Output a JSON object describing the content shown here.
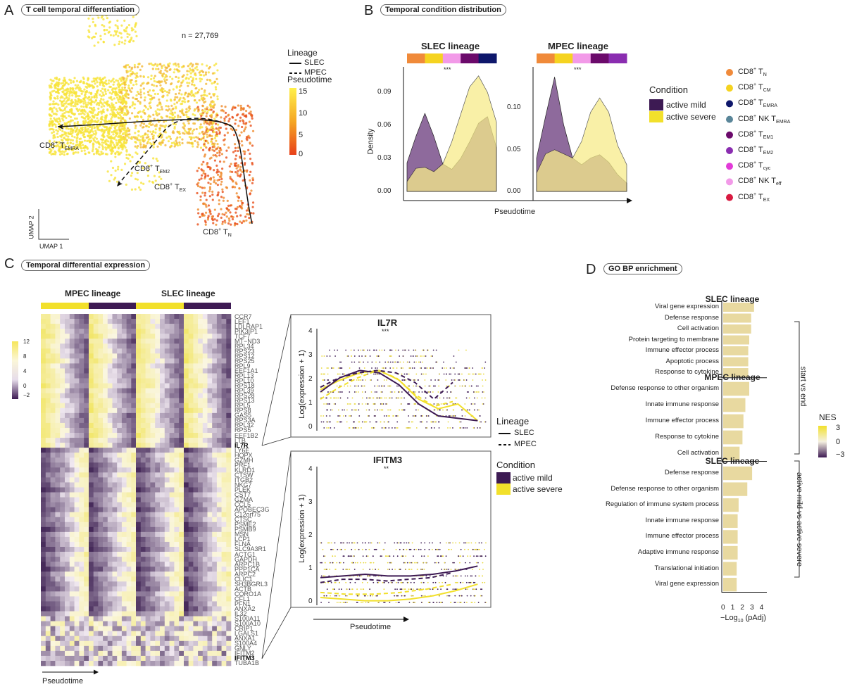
{
  "panels": {
    "a": {
      "letter": "A",
      "title": "T cell temporal differentiation",
      "n_label": "n = 27,769",
      "lineage_legend": {
        "title": "Lineage",
        "items": [
          "SLEC",
          "MPEC"
        ]
      },
      "pseudotime_legend": {
        "title": "Pseudotime",
        "ticks": [
          "15",
          "10",
          "5",
          "0"
        ],
        "colors": [
          "#fff04a",
          "#f5a623",
          "#e8401a"
        ]
      },
      "annotations": {
        "emra": "CD8",
        "emra_sub": "EMRA",
        "em2": "CD8",
        "em2_sub": "EM2",
        "ex": "CD8",
        "ex_sub": "EX",
        "tn": "CD8",
        "tn_sub": "N",
        "sup": "+",
        "t": "T"
      },
      "axes": {
        "x": "UMAP 1",
        "y": "UMAP 2"
      }
    },
    "b": {
      "letter": "B",
      "title": "Temporal condition distribution",
      "xlabel": "Pseudotime",
      "ylabel": "Density",
      "sig": "***",
      "condition_legend": {
        "title": "Condition",
        "items": [
          {
            "label": "active mild",
            "color": "#3d1a53"
          },
          {
            "label": "active severe",
            "color": "#f2e02b"
          }
        ]
      },
      "celltype_legend": [
        {
          "base": "CD8",
          "sup": "+",
          "main": " T",
          "sub": "N",
          "color": "#f08a3a"
        },
        {
          "base": "CD8",
          "sup": "+",
          "main": " T",
          "sub": "CM",
          "color": "#f5d320"
        },
        {
          "base": "CD8",
          "sup": "+",
          "main": " T",
          "sub": "EMRA",
          "color": "#0e176b"
        },
        {
          "base": "CD8",
          "sup": "+",
          "main": " NK T",
          "sub": "EMRA",
          "color": "#5a8699"
        },
        {
          "base": "CD8",
          "sup": "+",
          "main": " T",
          "sub": "EM1",
          "color": "#6b0a6b"
        },
        {
          "base": "CD8",
          "sup": "+",
          "main": " T",
          "sub": "EM2",
          "color": "#8a2db0"
        },
        {
          "base": "CD8",
          "sup": "+",
          "main": " T",
          "sub": "cyc",
          "color": "#e23ad8"
        },
        {
          "base": "CD8",
          "sup": "+",
          "main": " NK T",
          "sub": "eff",
          "color": "#f29ae8"
        },
        {
          "base": "CD8",
          "sup": "+",
          "main": " T",
          "sub": "EX",
          "color": "#d81a40"
        }
      ]
    },
    "c": {
      "letter": "C",
      "title": "Temporal differential expression",
      "lineages": [
        "MPEC lineage",
        "SLEC lineage"
      ],
      "xlabel": "Pseudotime",
      "colorbar_ticks": [
        "12",
        "8",
        "4",
        "0",
        "−2"
      ],
      "genes": [
        "CCR7",
        "LEF1",
        "LDLRAP1",
        "PIK3IP1",
        "TCF7",
        "MT−ND3",
        "RPL34",
        "RPS23",
        "RPS12",
        "RPS25",
        "RPL9",
        "EEF1A1",
        "RPL13",
        "RPL10",
        "RPS18",
        "RPL39",
        "RPS28",
        "RPS13",
        "RPL5",
        "RPS8",
        "GAS5",
        "RPS3A",
        "RPL32",
        "RPS5",
        "EEF1B2",
        "LTB",
        "IL7R",
        "LY6E",
        "HOPX",
        "GZMH",
        "PRF1",
        "KLRD1",
        "CTSW",
        "ITGB2",
        "NKG7",
        "PLEK",
        "CST7",
        "GZMA",
        "CCL5",
        "APOBEC3G",
        "C12orf75",
        "CTSC",
        "PSME2",
        "PSMB9",
        "MSN",
        "LCP1",
        "FLNA",
        "SLC9A3R1",
        "ACTG1",
        "GAPDH",
        "ARPC1B",
        "PPP1CA",
        "ARPC2",
        "CLIC1",
        "SH3BGRL3",
        "ACTB",
        "CORO1A",
        "CFL1",
        "PFN1",
        "ANXA2",
        "IL32",
        "S100A11",
        "S100A10",
        "CRIP1",
        "LGALS1",
        "ANXA1",
        "S100A4",
        "GNLY",
        "IFITM2",
        "IFITM3",
        "TUBA1B"
      ],
      "highlighted": [
        "IL7R",
        "IFITM3"
      ],
      "insets": [
        {
          "gene": "IL7R",
          "sig": "***",
          "ylabel": "Log(expression + 1)",
          "yticks": [
            0,
            1,
            2,
            3,
            4
          ],
          "curves": {
            "slec_mild": [
              1.5,
              2.1,
              2.4,
              2.3,
              1.8,
              1.0,
              0.5,
              0.4,
              0.3
            ],
            "slec_severe": [
              1.6,
              2.0,
              2.3,
              2.4,
              2.0,
              1.2,
              0.8,
              1.0,
              0.3
            ],
            "mpec_mild": [
              1.7,
              2.1,
              2.3,
              2.4,
              2.3,
              1.9,
              1.2,
              1.9
            ],
            "mpec_severe": [
              1.2,
              1.7,
              2.1,
              2.4,
              2.1,
              1.4,
              0.9,
              1.1
            ]
          }
        },
        {
          "gene": "IFITM3",
          "sig": "**",
          "ylabel": "Log(expression + 1)",
          "yticks": [
            0,
            1,
            2,
            3,
            4
          ],
          "curves": {
            "slec_mild": [
              0.75,
              0.8,
              0.85,
              0.8,
              0.8,
              0.85,
              0.95,
              1.1
            ],
            "slec_severe": [
              0.15,
              0.1,
              0.05,
              0.05,
              0.1,
              0.2,
              0.35,
              0.55
            ],
            "mpec_mild": [
              0.6,
              0.7,
              0.7,
              0.65,
              0.7,
              0.75,
              0.9
            ],
            "mpec_severe": [
              0.3,
              0.25,
              0.25,
              0.3,
              0.4,
              0.55
            ]
          }
        }
      ],
      "lineage_legend": {
        "title": "Lineage",
        "items": [
          "SLEC",
          "MPEC"
        ]
      },
      "condition_legend": {
        "title": "Condition",
        "items": [
          {
            "label": "active mild",
            "color": "#3d1a53"
          },
          {
            "label": "active severe",
            "color": "#f2e02b"
          }
        ]
      }
    },
    "d": {
      "letter": "D",
      "title": "GO BP enrichment",
      "xlabel_main": "−Log",
      "xlabel_sub": "10",
      "xlabel_rest": " (pAdj)",
      "xticks": [
        0,
        1,
        2,
        3,
        4
      ],
      "brackets": [
        "start vs end",
        "active mild vs active severe"
      ],
      "nes_legend": {
        "title": "NES",
        "ticks": [
          "3",
          "0",
          "−3"
        ]
      }
    }
  },
  "chart_data": [
    {
      "type": "area",
      "panel": "B",
      "title": "SLEC lineage",
      "xlabel": "Pseudotime",
      "ylabel": "Density",
      "yticks": [
        "0.00",
        "0.03",
        "0.06",
        "0.09"
      ],
      "ylim": [
        0,
        0.11
      ],
      "series": [
        {
          "name": "active mild",
          "color": "#8e6a9c",
          "values": [
            0.026,
            0.05,
            0.071,
            0.05,
            0.025,
            0.02,
            0.03,
            0.045,
            0.062,
            0.068,
            0.04
          ]
        },
        {
          "name": "active severe",
          "color": "#f7ec8a",
          "values": [
            0.009,
            0.021,
            0.022,
            0.018,
            0.025,
            0.045,
            0.07,
            0.095,
            0.105,
            0.09,
            0.063
          ]
        }
      ]
    },
    {
      "type": "area",
      "panel": "B",
      "title": "MPEC lineage",
      "xlabel": "Pseudotime",
      "ylabel": "Density",
      "yticks": [
        "0.00",
        "0.05",
        "0.10"
      ],
      "ylim": [
        0,
        0.145
      ],
      "series": [
        {
          "name": "active mild",
          "color": "#8e6a9c",
          "values": [
            0.04,
            0.09,
            0.137,
            0.08,
            0.04,
            0.032,
            0.04,
            0.044,
            0.035,
            0.02,
            0.01
          ]
        },
        {
          "name": "active severe",
          "color": "#f7ec8a",
          "values": [
            0.022,
            0.045,
            0.05,
            0.045,
            0.04,
            0.06,
            0.095,
            0.112,
            0.095,
            0.055,
            0.032
          ]
        }
      ]
    },
    {
      "type": "bar",
      "panel": "D",
      "title": "SLEC lineage",
      "categories": [
        "Viral gene expression",
        "Defense response",
        "Cell activation",
        "Protein targeting to membrane",
        "Immune effector process",
        "Apoptotic process",
        "Response to cytokine"
      ],
      "values": [
        3.2,
        2.9,
        2.9,
        2.7,
        2.6,
        2.6,
        2.6
      ],
      "xlim": [
        0,
        4
      ]
    },
    {
      "type": "bar",
      "panel": "D",
      "title": "MPEC lineage",
      "categories": [
        "Defense response to other organism",
        "Innate immune response",
        "Immune effector process",
        "Response to cytokine",
        "Cell activation"
      ],
      "values": [
        2.7,
        2.3,
        2.1,
        2.0,
        1.7
      ],
      "xlim": [
        0,
        4
      ]
    },
    {
      "type": "bar",
      "panel": "D",
      "title": "SLEC lineage",
      "categories": [
        "Defense response",
        "Defense response to other organism",
        "Regulation of immune system process",
        "Innate immune response",
        "Immune effector process",
        "Adaptive immune response",
        "Translational initiation",
        "Viral gene expression"
      ],
      "values": [
        3.0,
        2.5,
        1.6,
        1.5,
        1.5,
        1.5,
        1.4,
        1.4
      ],
      "xlim": [
        0,
        4
      ]
    }
  ]
}
